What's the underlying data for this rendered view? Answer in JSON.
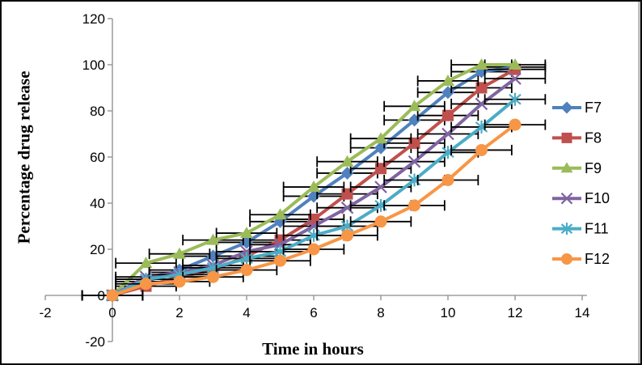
{
  "window": {
    "background": "#ffffff",
    "border_color": "#0a0a0a",
    "axis_line_color": "#8c8c8c",
    "error_bar_color": "#000000",
    "text_color": "#000000"
  },
  "chart_data": {
    "type": "line",
    "title": "",
    "xlabel": "Time in hours",
    "ylabel": "Percentage drug release",
    "x": [
      0,
      1,
      2,
      3,
      4,
      5,
      6,
      7,
      8,
      9,
      10,
      11,
      12
    ],
    "xlim": [
      -2,
      14
    ],
    "ylim": [
      -20,
      120
    ],
    "x_ticks": [
      -2,
      0,
      2,
      4,
      6,
      8,
      10,
      12,
      14
    ],
    "y_ticks": [
      120,
      100,
      80,
      60,
      40,
      20,
      0,
      -20
    ],
    "x_error_bars": 0.9,
    "grid": false,
    "legend_position": "right",
    "series": [
      {
        "name": "F7",
        "color": "#4F81BD",
        "marker": "diamond",
        "values": [
          0,
          6,
          11,
          17,
          23,
          32,
          43,
          53,
          64,
          76,
          88,
          97,
          99
        ]
      },
      {
        "name": "F8",
        "color": "#C0504D",
        "marker": "square",
        "values": [
          0,
          4,
          8,
          11,
          17,
          24,
          33,
          44,
          55,
          66,
          78,
          90,
          98
        ]
      },
      {
        "name": "F9",
        "color": "#9BBB59",
        "marker": "triangle",
        "values": [
          0,
          14,
          18,
          24,
          27,
          35,
          47,
          58,
          68,
          82,
          93,
          100,
          100
        ]
      },
      {
        "name": "F10",
        "color": "#8064A2",
        "marker": "x",
        "values": [
          0,
          8,
          10,
          13,
          19,
          22,
          30,
          38,
          47,
          58,
          70,
          83,
          94
        ]
      },
      {
        "name": "F11",
        "color": "#4BACC6",
        "marker": "asterisk",
        "values": [
          0,
          7,
          9,
          12,
          16,
          19,
          26,
          30,
          39,
          50,
          62,
          73,
          85
        ]
      },
      {
        "name": "F12",
        "color": "#F79646",
        "marker": "circle",
        "values": [
          0,
          5,
          6,
          8,
          11,
          15,
          20,
          26,
          32,
          39,
          50,
          63,
          74
        ]
      }
    ]
  }
}
